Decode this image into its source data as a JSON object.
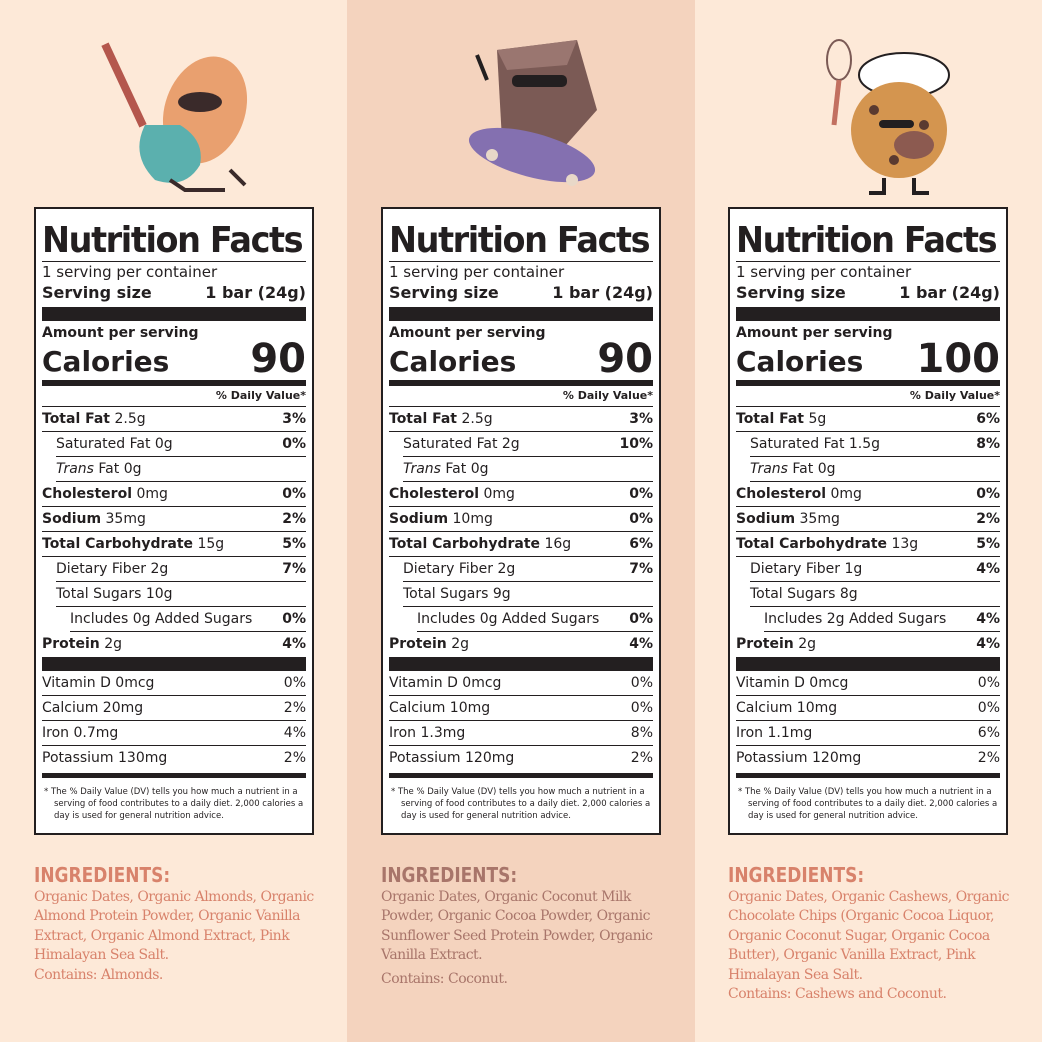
{
  "colors": {
    "background": "#fde9d8",
    "middle_background": "#f4d3be",
    "ingredients_text": "#d8826b",
    "ingredients_text_middle": "#a8756a"
  },
  "columns": [
    {
      "mascot": "almond-playing-guitar",
      "label": {
        "title": "Nutrition Facts",
        "servings": "1 serving per container",
        "serving_size_label": "Serving size",
        "serving_size": "1 bar (24g)",
        "amount_label": "Amount per serving",
        "calories_label": "Calories",
        "calories": "90",
        "dv_header": "% Daily Value*",
        "nutrients": [
          {
            "name": "Total Fat",
            "amount": "2.5g",
            "dv": "3%",
            "bold": true,
            "indent": 0
          },
          {
            "name": "Saturated Fat",
            "amount": "0g",
            "dv": "0%",
            "indent": 1
          },
          {
            "name": "Trans",
            "name_suffix": "Fat",
            "amount": "0g",
            "dv": "",
            "indent": 1,
            "italic": true
          },
          {
            "name": "Cholesterol",
            "amount": "0mg",
            "dv": "0%",
            "bold": true,
            "indent": 0
          },
          {
            "name": "Sodium",
            "amount": "35mg",
            "dv": "2%",
            "bold": true,
            "indent": 0
          },
          {
            "name": "Total Carbohydrate",
            "amount": "15g",
            "dv": "5%",
            "bold": true,
            "indent": 0
          },
          {
            "name": "Dietary Fiber",
            "amount": "2g",
            "dv": "7%",
            "indent": 1
          },
          {
            "name": "Total Sugars",
            "amount": "10g",
            "dv": "",
            "indent": 1
          },
          {
            "name": "Includes 0g Added Sugars",
            "amount": "",
            "dv": "0%",
            "indent": 2
          },
          {
            "name": "Protein",
            "amount": "2g",
            "dv": "4%",
            "bold": true,
            "indent": 0
          }
        ],
        "vitamins": [
          {
            "name": "Vitamin D 0mcg",
            "dv": "0%"
          },
          {
            "name": "Calcium 20mg",
            "dv": "2%"
          },
          {
            "name": "Iron 0.7mg",
            "dv": "4%"
          },
          {
            "name": "Potassium 130mg",
            "dv": "2%"
          }
        ],
        "footnote": "* The % Daily Value (DV) tells you how much a nutrient in a serving of food contributes to a daily diet. 2,000 calories a day is used for general nutrition advice."
      },
      "ingredients": {
        "heading": "INGREDIENTS:",
        "text": "Organic Dates, Organic Almonds, Organic Almond Protein Powder, Organic Vanilla Extract, Organic Almond Extract, Pink Himalayan Sea Salt.",
        "contains": "Contains: Almonds."
      }
    },
    {
      "mascot": "brownie-on-skateboard",
      "label": {
        "title": "Nutrition Facts",
        "servings": "1 serving per container",
        "serving_size_label": "Serving size",
        "serving_size": "1 bar (24g)",
        "amount_label": "Amount per serving",
        "calories_label": "Calories",
        "calories": "90",
        "dv_header": "% Daily Value*",
        "nutrients": [
          {
            "name": "Total Fat",
            "amount": "2.5g",
            "dv": "3%",
            "bold": true,
            "indent": 0
          },
          {
            "name": "Saturated Fat",
            "amount": "2g",
            "dv": "10%",
            "indent": 1
          },
          {
            "name": "Trans",
            "name_suffix": "Fat",
            "amount": "0g",
            "dv": "",
            "indent": 1,
            "italic": true
          },
          {
            "name": "Cholesterol",
            "amount": "0mg",
            "dv": "0%",
            "bold": true,
            "indent": 0
          },
          {
            "name": "Sodium",
            "amount": "10mg",
            "dv": "0%",
            "bold": true,
            "indent": 0
          },
          {
            "name": "Total Carbohydrate",
            "amount": "16g",
            "dv": "6%",
            "bold": true,
            "indent": 0
          },
          {
            "name": "Dietary Fiber",
            "amount": "2g",
            "dv": "7%",
            "indent": 1
          },
          {
            "name": "Total Sugars",
            "amount": "9g",
            "dv": "",
            "indent": 1
          },
          {
            "name": "Includes 0g Added Sugars",
            "amount": "",
            "dv": "0%",
            "indent": 2
          },
          {
            "name": "Protein",
            "amount": "2g",
            "dv": "4%",
            "bold": true,
            "indent": 0
          }
        ],
        "vitamins": [
          {
            "name": "Vitamin D 0mcg",
            "dv": "0%"
          },
          {
            "name": "Calcium 10mg",
            "dv": "0%"
          },
          {
            "name": "Iron 1.3mg",
            "dv": "8%"
          },
          {
            "name": "Potassium 120mg",
            "dv": "2%"
          }
        ],
        "footnote": "* The % Daily Value (DV) tells you how much a nutrient in a serving of food contributes to a daily diet. 2,000 calories a day is used for general nutrition advice."
      },
      "ingredients": {
        "heading": "INGREDIENTS:",
        "text": "Organic Dates, Organic Coconut Milk Powder, Organic Cocoa Powder, Organic Sunflower Seed Protein Powder, Organic Vanilla Extract.",
        "contains": "Contains: Coconut."
      }
    },
    {
      "mascot": "cookie-chef-with-whisk",
      "label": {
        "title": "Nutrition Facts",
        "servings": "1 serving per container",
        "serving_size_label": "Serving size",
        "serving_size": "1 bar (24g)",
        "amount_label": "Amount per serving",
        "calories_label": "Calories",
        "calories": "100",
        "dv_header": "% Daily Value*",
        "nutrients": [
          {
            "name": "Total Fat",
            "amount": "5g",
            "dv": "6%",
            "bold": true,
            "indent": 0
          },
          {
            "name": "Saturated Fat",
            "amount": "1.5g",
            "dv": "8%",
            "indent": 1
          },
          {
            "name": "Trans",
            "name_suffix": "Fat",
            "amount": "0g",
            "dv": "",
            "indent": 1,
            "italic": true
          },
          {
            "name": "Cholesterol",
            "amount": "0mg",
            "dv": "0%",
            "bold": true,
            "indent": 0
          },
          {
            "name": "Sodium",
            "amount": "35mg",
            "dv": "2%",
            "bold": true,
            "indent": 0
          },
          {
            "name": "Total Carbohydrate",
            "amount": "13g",
            "dv": "5%",
            "bold": true,
            "indent": 0
          },
          {
            "name": "Dietary Fiber",
            "amount": "1g",
            "dv": "4%",
            "indent": 1
          },
          {
            "name": "Total Sugars",
            "amount": "8g",
            "dv": "",
            "indent": 1
          },
          {
            "name": "Includes 2g Added Sugars",
            "amount": "",
            "dv": "4%",
            "indent": 2
          },
          {
            "name": "Protein",
            "amount": "2g",
            "dv": "4%",
            "bold": true,
            "indent": 0
          }
        ],
        "vitamins": [
          {
            "name": "Vitamin D 0mcg",
            "dv": "0%"
          },
          {
            "name": "Calcium 10mg",
            "dv": "0%"
          },
          {
            "name": "Iron 1.1mg",
            "dv": "6%"
          },
          {
            "name": "Potassium 120mg",
            "dv": "2%"
          }
        ],
        "footnote": "* The % Daily Value (DV) tells you how much a nutrient in a serving of food contributes to a daily diet. 2,000 calories a day is used for general nutrition advice."
      },
      "ingredients": {
        "heading": "INGREDIENTS:",
        "text": "Organic Dates, Organic Cashews, Organic Chocolate Chips (Organic Cocoa Liquor, Organic Coconut Sugar, Organic Cocoa Butter), Organic Vanilla Extract, Pink Himalayan Sea Salt.",
        "contains": "Contains: Cashews and Coconut."
      }
    }
  ]
}
